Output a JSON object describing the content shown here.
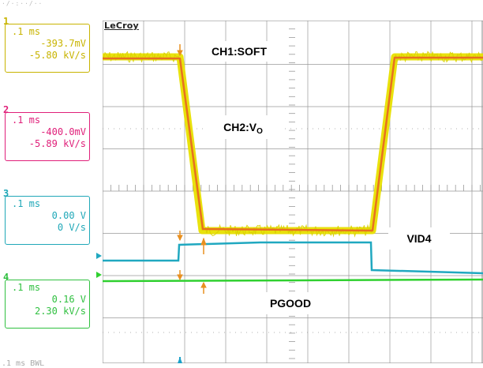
{
  "app": {
    "logo": "LeCroy",
    "top_fragment": "·/·:··/··",
    "bottom_fragment": ".1 ms    BWL"
  },
  "channels": [
    {
      "num": "1",
      "timebase": ".1 ms",
      "value": "-393.7mV",
      "rate": "-5.80 kV/s",
      "color": "#c8b400"
    },
    {
      "num": "2",
      "timebase": ".1 ms",
      "value": "-400.0mV",
      "rate": "-5.89 kV/s",
      "color": "#e0207a"
    },
    {
      "num": "3",
      "timebase": ".1 ms",
      "value": "0.00 V",
      "rate": "0 V/s",
      "color": "#20a8b8"
    },
    {
      "num": "4",
      "timebase": ".1 ms",
      "value": "0.16 V",
      "rate": "2.30 kV/s",
      "color": "#30c040"
    }
  ],
  "labels": {
    "ch1": "CH1:SOFT",
    "ch2_main": "CH2:V",
    "ch2_sub": "O",
    "vid4": "VID4",
    "pgood": "PGOOD"
  },
  "colors": {
    "grid": "#999999",
    "trace1": "#e8e000",
    "trace2": "#e87020",
    "trace3": "#20a8c0",
    "trace4": "#30d030",
    "marker": "#e89020",
    "trigger": "#1aa0c8"
  }
}
